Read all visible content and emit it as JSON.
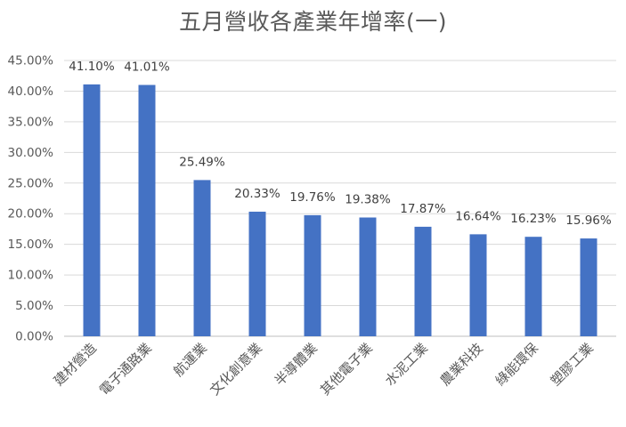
{
  "chart_data": {
    "type": "bar",
    "title": "五月營收各產業年增率(一)",
    "xlabel": "",
    "ylabel": "",
    "categories": [
      "建材營造",
      "電子通路業",
      "航運業",
      "文化創意業",
      "半導體業",
      "其他電子業",
      "水泥工業",
      "農業科技",
      "綠能環保",
      "塑膠工業"
    ],
    "values": [
      41.1,
      41.01,
      25.49,
      20.33,
      19.76,
      19.38,
      17.87,
      16.64,
      16.23,
      15.96
    ],
    "data_labels": [
      "41.10%",
      "41.01%",
      "25.49%",
      "20.33%",
      "19.76%",
      "19.38%",
      "17.87%",
      "16.64%",
      "16.23%",
      "15.96%"
    ],
    "y_ticks": [
      "0.00%",
      "5.00%",
      "10.00%",
      "15.00%",
      "20.00%",
      "25.00%",
      "30.00%",
      "35.00%",
      "40.00%",
      "45.00%"
    ],
    "ylim": [
      0,
      45
    ],
    "y_step": 5,
    "grid": true,
    "legend": "none",
    "bar_color": "#4472C4",
    "grid_color": "#D9D9D9",
    "axis_color": "#BFBFBF",
    "text_color": "#595959",
    "label_color": "#404040"
  }
}
